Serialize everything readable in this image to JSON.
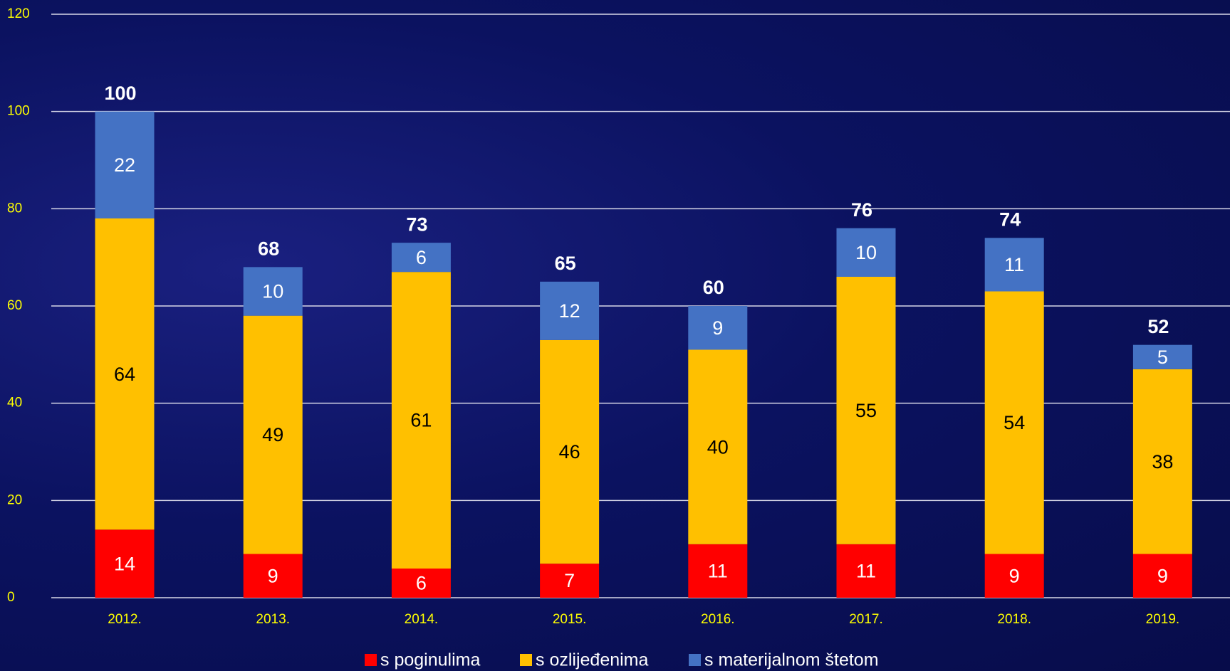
{
  "chart_data": {
    "type": "stacked_bar",
    "categories": [
      "2012.",
      "2013.",
      "2014.",
      "2015.",
      "2016.",
      "2017.",
      "2018.",
      "2019."
    ],
    "series": [
      {
        "name": "s poginulima",
        "color": "#ff0000",
        "values": [
          14,
          9,
          6,
          7,
          11,
          11,
          9,
          9
        ]
      },
      {
        "name": "s ozlijeđenima",
        "color": "#ffc000",
        "values": [
          64,
          49,
          61,
          46,
          40,
          55,
          54,
          38
        ]
      },
      {
        "name": "s materijalnom štetom",
        "color": "#4472c4",
        "values": [
          22,
          10,
          6,
          12,
          9,
          10,
          11,
          5
        ]
      }
    ],
    "totals": [
      100,
      68,
      73,
      65,
      60,
      76,
      74,
      52
    ],
    "ylim": [
      0,
      120
    ],
    "yticks": [
      0,
      20,
      40,
      60,
      80,
      100,
      120
    ],
    "grid": true,
    "legend": "bottom"
  }
}
